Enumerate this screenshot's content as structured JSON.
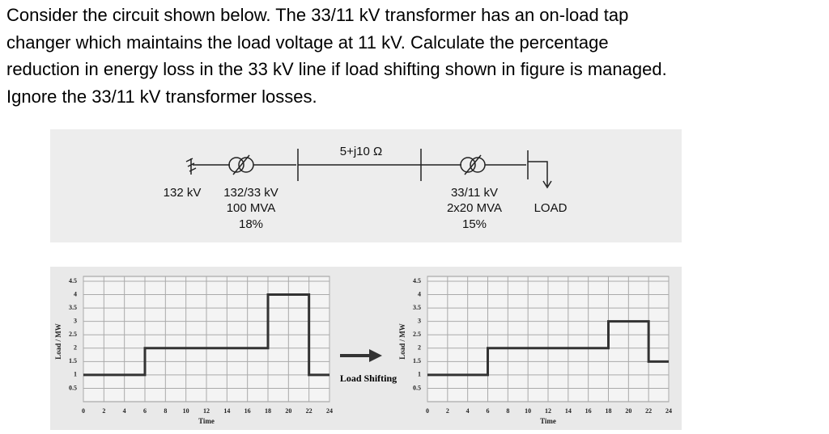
{
  "question": {
    "lines": [
      "Consider the circuit shown below. The 33/11 kV transformer has an on-load tap",
      "changer which maintains the load voltage at 11 kV. Calculate the percentage",
      "reduction in energy loss in the 33 kV line if load shifting shown in figure is managed.",
      "Ignore the 33/11 kV transformer losses."
    ]
  },
  "diagram": {
    "line_impedance": "5+j10 Ω",
    "source_label": "132 kV",
    "transformer_1": {
      "ratio": "132/33 kV",
      "rating": "100 MVA",
      "impedance": "18%"
    },
    "transformer_2": {
      "ratio": "33/11 kV",
      "rating": "2x20 MVA",
      "impedance": "15%"
    },
    "load_label": "LOAD"
  },
  "arrow_label": "Load Shifting",
  "chart_data": [
    {
      "type": "line",
      "y_label": "Load / MW",
      "x_label": "Time",
      "x": [
        0,
        6,
        6,
        18,
        18,
        22,
        22,
        24
      ],
      "values": [
        1,
        1,
        2,
        2,
        4,
        4,
        1,
        1
      ],
      "color": "#333333",
      "xlim": [
        0,
        24
      ],
      "xticks": [
        0,
        2,
        4,
        6,
        8,
        10,
        12,
        14,
        16,
        18,
        20,
        22,
        24
      ],
      "ylim": [
        0,
        4.5
      ],
      "yticks": [
        0.5,
        1,
        1.5,
        2,
        2.5,
        3,
        3.5,
        4,
        4.5
      ],
      "grid": true
    },
    {
      "type": "line",
      "y_label": "Load / MW",
      "x_label": "Time",
      "x": [
        0,
        6,
        6,
        18,
        18,
        22,
        22,
        24
      ],
      "values": [
        1,
        1,
        2,
        2,
        3,
        3,
        1.5,
        1.5
      ],
      "color": "#333333",
      "xlim": [
        0,
        24
      ],
      "xticks": [
        0,
        2,
        4,
        6,
        8,
        10,
        12,
        14,
        16,
        18,
        20,
        22,
        24
      ],
      "ylim": [
        0,
        4.5
      ],
      "yticks": [
        0.5,
        1,
        1.5,
        2,
        2.5,
        3,
        3.5,
        4,
        4.5
      ],
      "grid": true
    }
  ]
}
